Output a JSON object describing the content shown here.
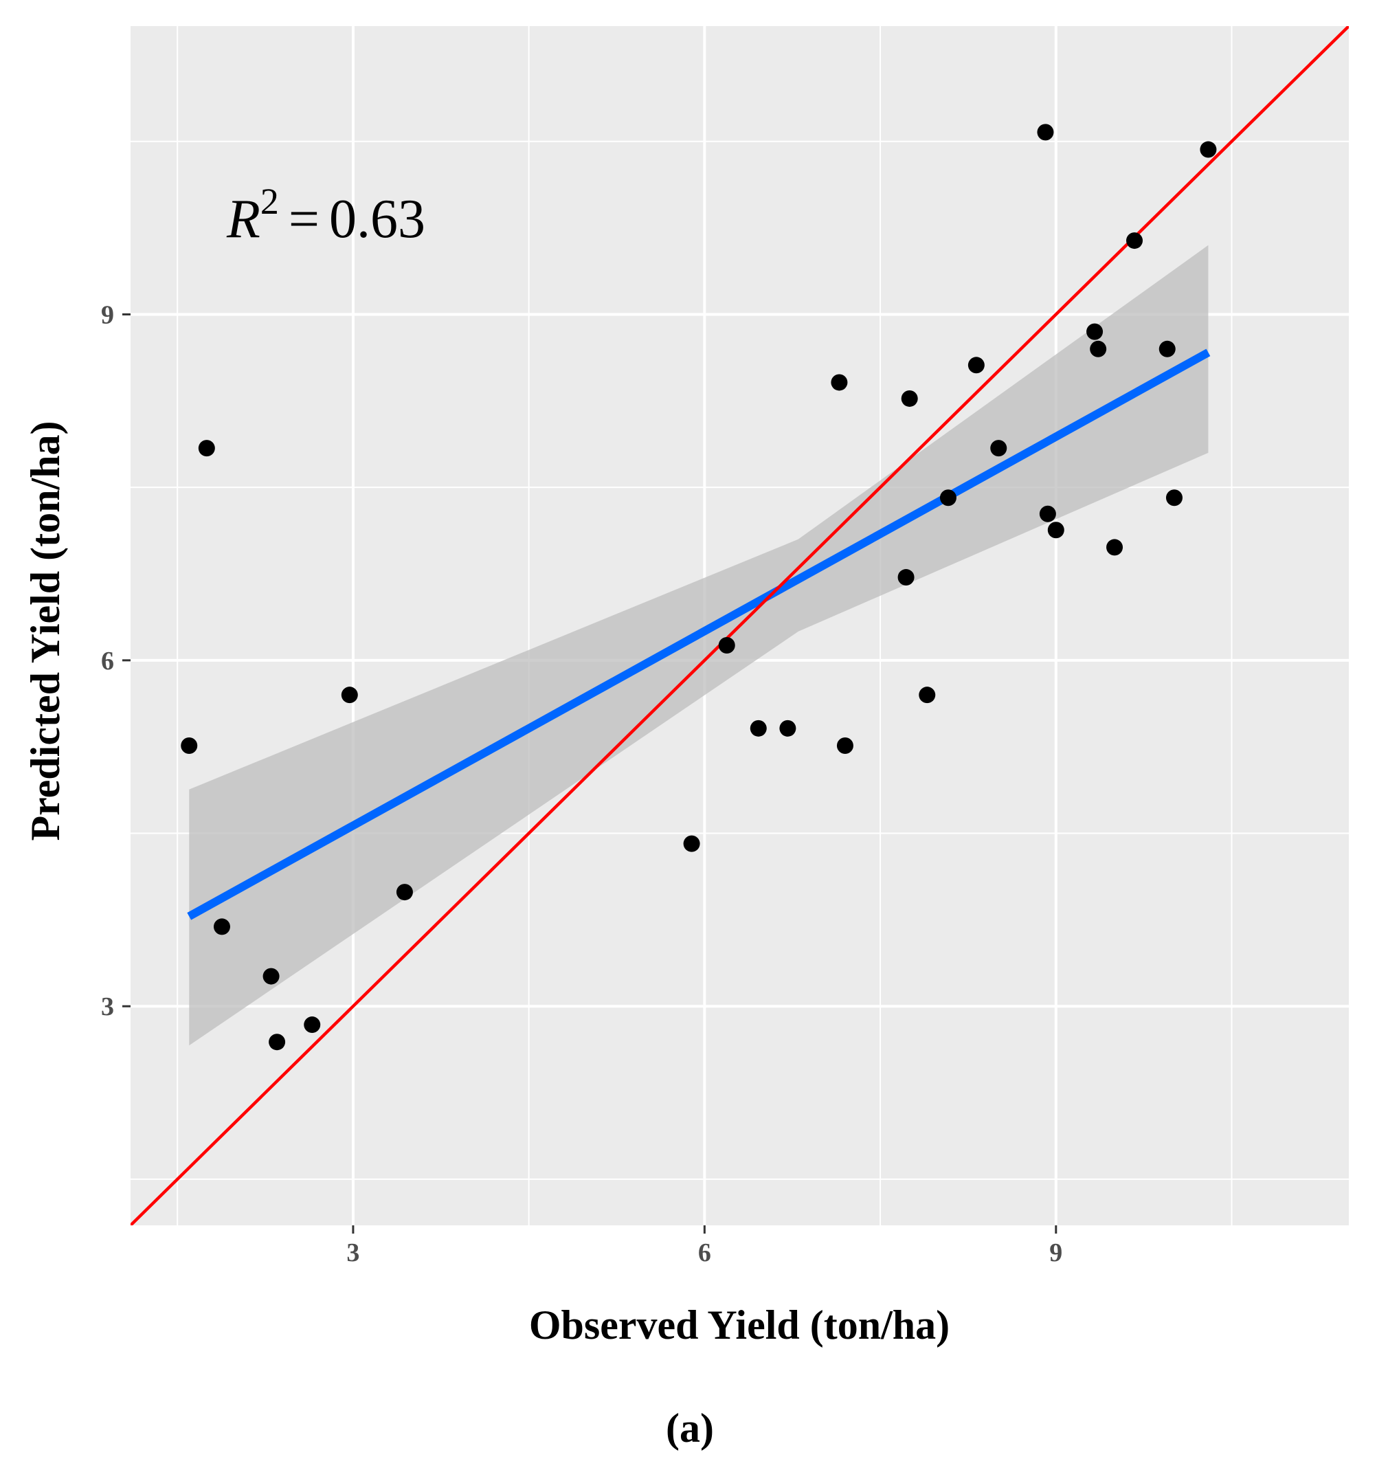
{
  "chart_data": {
    "type": "scatter",
    "xlabel": "Observed Yield (ton/ha)",
    "ylabel": "Predicted Yield (ton/ha)",
    "xlim": [
      1.1,
      11.5
    ],
    "ylim": [
      1.1,
      11.5
    ],
    "x_ticks": [
      3,
      6,
      9
    ],
    "y_ticks": [
      3,
      6,
      9
    ],
    "x_tick_labels": [
      "3",
      "6",
      "9"
    ],
    "y_tick_labels": [
      "3",
      "6",
      "9"
    ],
    "grid": true,
    "annotation": {
      "symbol": "R",
      "exponent": "2",
      "equals": "=",
      "value": "0.63"
    },
    "caption": "(a)",
    "points": {
      "x": [
        1.6,
        1.75,
        1.88,
        2.3,
        2.35,
        2.65,
        2.97,
        3.44,
        5.89,
        6.19,
        6.46,
        6.71,
        7.15,
        7.2,
        7.72,
        7.75,
        7.9,
        8.08,
        8.32,
        8.51,
        8.91,
        8.93,
        9.0,
        9.33,
        9.36,
        9.5,
        9.67,
        9.95,
        10.01,
        10.3
      ],
      "y": [
        5.26,
        7.84,
        3.69,
        3.26,
        2.69,
        2.84,
        5.7,
        3.99,
        4.41,
        6.13,
        5.41,
        5.41,
        8.41,
        5.26,
        6.72,
        8.27,
        5.7,
        7.41,
        8.56,
        7.84,
        10.58,
        7.27,
        7.13,
        8.85,
        8.7,
        6.98,
        9.64,
        8.7,
        7.41,
        10.43
      ]
    },
    "regression": {
      "x": [
        1.6,
        10.3
      ],
      "y": [
        3.78,
        8.67
      ],
      "color": "#0066ff"
    },
    "confidence_band": {
      "x": [
        1.6,
        6.8,
        10.3
      ],
      "upper": [
        4.88,
        7.05,
        9.6
      ],
      "lower": [
        2.66,
        6.25,
        7.8
      ],
      "color": "#bdbdbd"
    },
    "identity_line": {
      "x": [
        1.1,
        11.5
      ],
      "y": [
        1.1,
        11.5
      ],
      "color": "#ff0000"
    },
    "colors": {
      "panel": "#ebebeb",
      "grid": "#ffffff",
      "points": "#000000"
    }
  }
}
